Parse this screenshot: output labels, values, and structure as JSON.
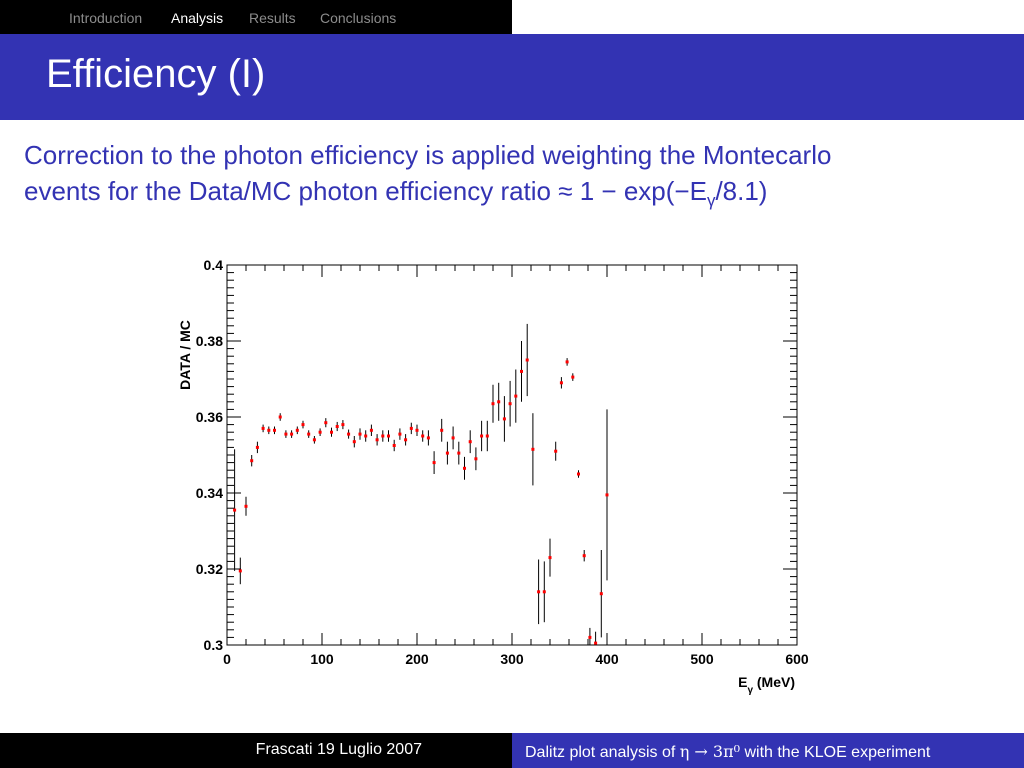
{
  "nav": {
    "items": [
      {
        "label": "Introduction",
        "active": false
      },
      {
        "label": "Analysis",
        "active": true
      },
      {
        "label": "Results",
        "active": false
      },
      {
        "label": "Conclusions",
        "active": false
      }
    ]
  },
  "slide": {
    "title": "Efficiency (I)",
    "text_line1": "Correction to the photon efficiency is applied weighting  the Montecarlo",
    "text_line2_pre": "events for the Data/MC  photon efficiency ratio ≈ 1 − exp(−E",
    "text_line2_sub": "γ",
    "text_line2_post": "/8.1)"
  },
  "footer": {
    "date": "Frascati 19 Luglio 2007",
    "talk_pre": "Dalitz plot analysis of ",
    "talk_formula": "η → 3π⁰",
    "talk_post": " with the KLOE experiment"
  },
  "colors": {
    "accent": "#3333b3",
    "marker": "#ff0000",
    "nav_inactive": "#8c8c8c"
  },
  "chart_data": {
    "type": "scatter",
    "xlabel": "Eγ (MeV)",
    "ylabel": "DATA / MC",
    "xlim": [
      0,
      600
    ],
    "ylim": [
      0.3,
      0.4
    ],
    "xticks": [
      0,
      100,
      200,
      300,
      400,
      500,
      600
    ],
    "yticks": [
      0.3,
      0.32,
      0.34,
      0.36,
      0.38,
      0.4
    ],
    "ytick_labels": [
      "0.3",
      "0.32",
      "0.34",
      "0.36",
      "0.38",
      "0.4"
    ],
    "grid": false,
    "legend": "none",
    "points": [
      {
        "x": 8,
        "y": 0.3355,
        "err": 0.016
      },
      {
        "x": 14,
        "y": 0.3195,
        "err": 0.0035
      },
      {
        "x": 20,
        "y": 0.3365,
        "err": 0.0025
      },
      {
        "x": 26,
        "y": 0.3485,
        "err": 0.0015
      },
      {
        "x": 32,
        "y": 0.352,
        "err": 0.0015
      },
      {
        "x": 38,
        "y": 0.357,
        "err": 0.001
      },
      {
        "x": 44,
        "y": 0.3565,
        "err": 0.001
      },
      {
        "x": 50,
        "y": 0.3565,
        "err": 0.001
      },
      {
        "x": 56,
        "y": 0.36,
        "err": 0.001
      },
      {
        "x": 62,
        "y": 0.3555,
        "err": 0.001
      },
      {
        "x": 68,
        "y": 0.3555,
        "err": 0.001
      },
      {
        "x": 74,
        "y": 0.3565,
        "err": 0.001
      },
      {
        "x": 80,
        "y": 0.358,
        "err": 0.001
      },
      {
        "x": 86,
        "y": 0.3555,
        "err": 0.001
      },
      {
        "x": 92,
        "y": 0.354,
        "err": 0.001
      },
      {
        "x": 98,
        "y": 0.356,
        "err": 0.001
      },
      {
        "x": 104,
        "y": 0.3585,
        "err": 0.0012
      },
      {
        "x": 110,
        "y": 0.356,
        "err": 0.0012
      },
      {
        "x": 116,
        "y": 0.3575,
        "err": 0.0012
      },
      {
        "x": 122,
        "y": 0.358,
        "err": 0.0012
      },
      {
        "x": 128,
        "y": 0.3555,
        "err": 0.0012
      },
      {
        "x": 134,
        "y": 0.3535,
        "err": 0.0015
      },
      {
        "x": 140,
        "y": 0.3555,
        "err": 0.0015
      },
      {
        "x": 146,
        "y": 0.355,
        "err": 0.0015
      },
      {
        "x": 152,
        "y": 0.3565,
        "err": 0.0015
      },
      {
        "x": 158,
        "y": 0.354,
        "err": 0.0015
      },
      {
        "x": 164,
        "y": 0.355,
        "err": 0.0015
      },
      {
        "x": 170,
        "y": 0.355,
        "err": 0.0015
      },
      {
        "x": 176,
        "y": 0.3525,
        "err": 0.0015
      },
      {
        "x": 182,
        "y": 0.3555,
        "err": 0.0015
      },
      {
        "x": 188,
        "y": 0.354,
        "err": 0.0015
      },
      {
        "x": 194,
        "y": 0.357,
        "err": 0.0015
      },
      {
        "x": 200,
        "y": 0.3565,
        "err": 0.0015
      },
      {
        "x": 206,
        "y": 0.355,
        "err": 0.0015
      },
      {
        "x": 212,
        "y": 0.3545,
        "err": 0.002
      },
      {
        "x": 218,
        "y": 0.348,
        "err": 0.003
      },
      {
        "x": 226,
        "y": 0.3565,
        "err": 0.003
      },
      {
        "x": 232,
        "y": 0.3505,
        "err": 0.003
      },
      {
        "x": 238,
        "y": 0.3545,
        "err": 0.003
      },
      {
        "x": 244,
        "y": 0.3505,
        "err": 0.003
      },
      {
        "x": 250,
        "y": 0.3465,
        "err": 0.003
      },
      {
        "x": 256,
        "y": 0.3535,
        "err": 0.003
      },
      {
        "x": 262,
        "y": 0.349,
        "err": 0.003
      },
      {
        "x": 268,
        "y": 0.355,
        "err": 0.004
      },
      {
        "x": 274,
        "y": 0.355,
        "err": 0.004
      },
      {
        "x": 280,
        "y": 0.3635,
        "err": 0.005
      },
      {
        "x": 286,
        "y": 0.364,
        "err": 0.005
      },
      {
        "x": 292,
        "y": 0.3595,
        "err": 0.006
      },
      {
        "x": 298,
        "y": 0.3635,
        "err": 0.006
      },
      {
        "x": 304,
        "y": 0.3655,
        "err": 0.007
      },
      {
        "x": 310,
        "y": 0.372,
        "err": 0.008
      },
      {
        "x": 316,
        "y": 0.375,
        "err": 0.0095
      },
      {
        "x": 322,
        "y": 0.3515,
        "err": 0.0095
      },
      {
        "x": 328,
        "y": 0.314,
        "err": 0.0085
      },
      {
        "x": 334,
        "y": 0.314,
        "err": 0.008
      },
      {
        "x": 340,
        "y": 0.323,
        "err": 0.005
      },
      {
        "x": 346,
        "y": 0.351,
        "err": 0.0025
      },
      {
        "x": 352,
        "y": 0.369,
        "err": 0.0015
      },
      {
        "x": 358,
        "y": 0.3745,
        "err": 0.001
      },
      {
        "x": 364,
        "y": 0.3705,
        "err": 0.001
      },
      {
        "x": 370,
        "y": 0.345,
        "err": 0.001
      },
      {
        "x": 376,
        "y": 0.3235,
        "err": 0.0015
      },
      {
        "x": 382,
        "y": 0.302,
        "err": 0.0025
      },
      {
        "x": 388,
        "y": 0.3005,
        "err": 0.003
      },
      {
        "x": 394,
        "y": 0.3135,
        "err": 0.0115
      },
      {
        "x": 400,
        "y": 0.3395,
        "err": 0.0225
      }
    ]
  }
}
